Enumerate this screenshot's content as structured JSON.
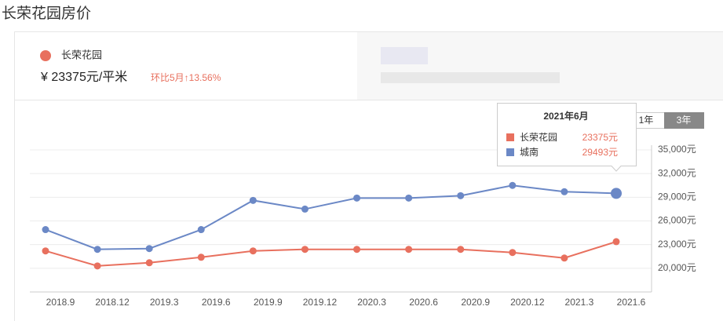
{
  "page_title": "长荣花园房价",
  "header": {
    "name": "长荣花园",
    "price": "¥ 23375元/平米",
    "change": "环比5月↑13.56%"
  },
  "buttons": [
    "1年",
    "3年"
  ],
  "tooltip": {
    "title": "2021年6月",
    "rows": [
      {
        "name": "长荣花园",
        "value": "23375元"
      },
      {
        "name": "城南",
        "value": "29493元"
      }
    ]
  },
  "chart_data": {
    "type": "line",
    "categories": [
      "2018.9",
      "2018.12",
      "2019.3",
      "2019.6",
      "2019.9",
      "2019.12",
      "2020.3",
      "2020.6",
      "2020.9",
      "2020.12",
      "2021.3",
      "2021.6"
    ],
    "series": [
      {
        "name": "长荣花园",
        "color": "#e8705e",
        "values": [
          22200,
          20300,
          20700,
          21400,
          22200,
          22400,
          22400,
          22400,
          22400,
          22000,
          21300,
          23375
        ]
      },
      {
        "name": "城南",
        "color": "#6b88c6",
        "values": [
          24900,
          22400,
          22500,
          24900,
          28600,
          27500,
          28900,
          28900,
          29200,
          30500,
          29700,
          29493
        ]
      }
    ],
    "ylim": [
      17000,
      35000
    ],
    "yticks": [
      {
        "value": 20000,
        "label": "20,000元"
      },
      {
        "value": 23000,
        "label": "23,000元"
      },
      {
        "value": 26000,
        "label": "26,000元"
      },
      {
        "value": 29000,
        "label": "29,000元"
      },
      {
        "value": 32000,
        "label": "32,000元"
      },
      {
        "value": 35000,
        "label": "35,000元"
      }
    ],
    "grid": true
  }
}
